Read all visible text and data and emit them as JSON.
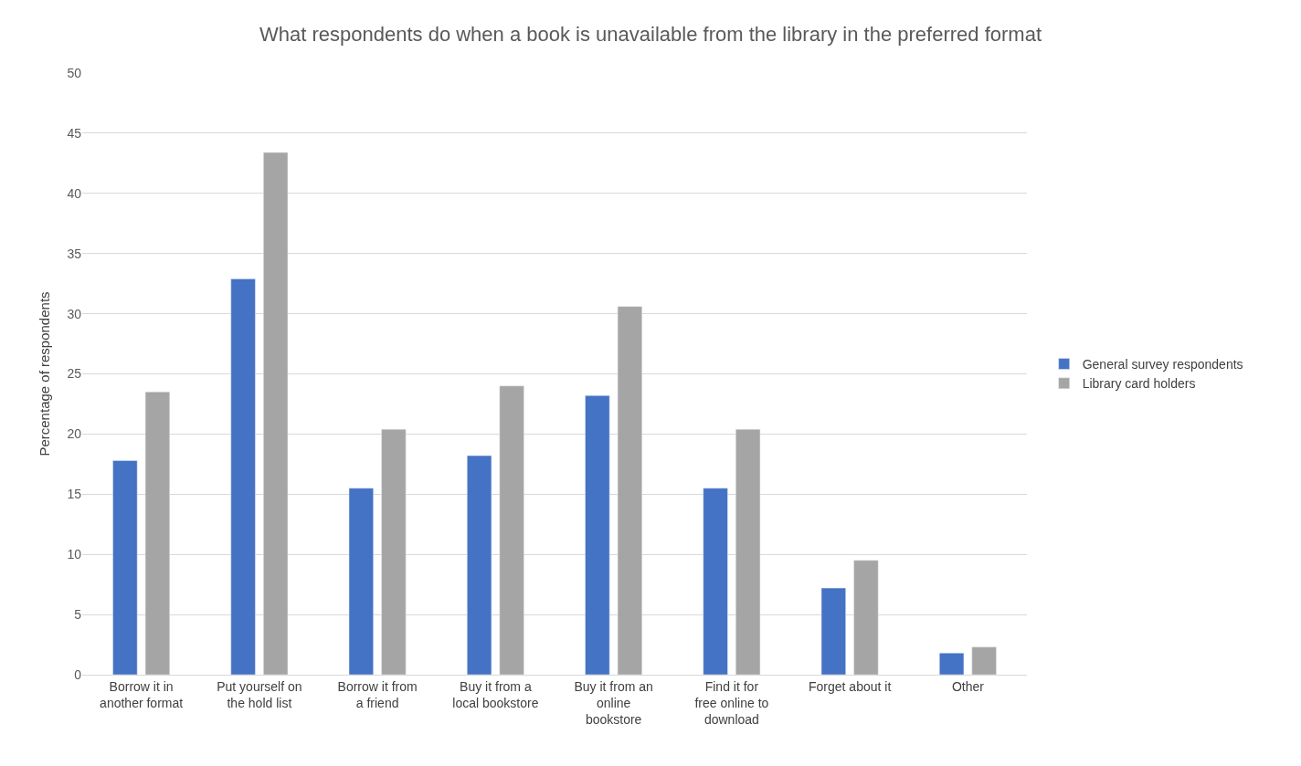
{
  "chart_data": {
    "type": "bar",
    "title": "What respondents do when a book is unavailable from the library in the preferred format",
    "ylabel": "Percentage of respondents",
    "categories": [
      "Borrow it in another format",
      "Put yourself on the hold list",
      "Borrow it from a friend",
      "Buy it from a local bookstore",
      "Buy it from an online bookstore",
      "Find it for free online to download",
      "Forget about it",
      "Other"
    ],
    "series": [
      {
        "name": "General survey respondents",
        "color": "#4472c4",
        "values": [
          17.8,
          32.9,
          15.5,
          18.2,
          23.2,
          15.5,
          7.2,
          1.8
        ]
      },
      {
        "name": "Library card holders",
        "color": "#a5a5a5",
        "values": [
          23.5,
          43.4,
          20.4,
          24.0,
          30.6,
          20.4,
          9.5,
          2.3
        ]
      }
    ],
    "ylim": [
      0,
      50
    ],
    "yticks": [
      0,
      5,
      10,
      15,
      20,
      25,
      30,
      35,
      40,
      45,
      50
    ],
    "grid": "y",
    "legend": "right"
  }
}
